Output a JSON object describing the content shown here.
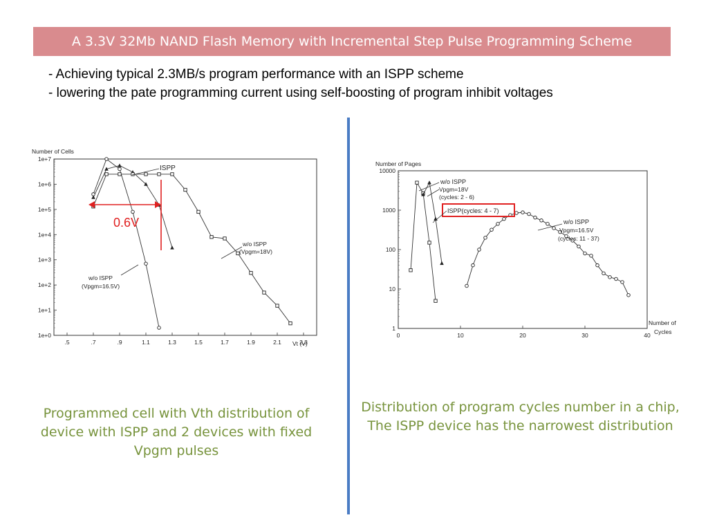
{
  "title": "A 3.3V 32Mb NAND Flash Memory with Incremental Step Pulse Programming Scheme",
  "bullets": [
    "- Achieving typical 2.3MB/s program performance with an ISPP scheme",
    "- lowering the pate programming current using self-boosting of program inhibit voltages"
  ],
  "captions": {
    "left": "Programmed cell with Vth distribution of device with ISPP and 2 devices with fixed Vpgm pulses",
    "right": "Distribution of program cycles number in a chip, The ISPP device has the narrowest distribution"
  },
  "colors": {
    "title_bg": "#d98b8e",
    "divider": "#4a7cc4",
    "caption": "#77933c",
    "highlight": "#e02020"
  },
  "chart_data": [
    {
      "type": "line",
      "ylabel": "Number of Cells",
      "xlabel": "Vt (V)",
      "yscale": "log",
      "xlim": [
        0.4,
        2.4
      ],
      "ylim": [
        1,
        10000000
      ],
      "x_ticks": [
        ".5",
        ".7",
        ".9",
        "1.1",
        "1.3",
        "1.5",
        "1.7",
        "1.9",
        "2.1",
        "2.3"
      ],
      "x_tick_values": [
        0.5,
        0.7,
        0.9,
        1.1,
        1.3,
        1.5,
        1.7,
        1.9,
        2.1,
        2.3
      ],
      "y_ticks": [
        "1e+0",
        "1e+1",
        "1e+2",
        "1e+3",
        "1e+4",
        "1e+5",
        "1e+6",
        "1e+7"
      ],
      "annotation": "0.6V",
      "series": [
        {
          "name": "ISPP",
          "marker": "triangle",
          "x": [
            0.7,
            0.8,
            0.9,
            1.0,
            1.1,
            1.2,
            1.3
          ],
          "y": [
            300000,
            4000000,
            5500000,
            3000000,
            1000000,
            150000,
            3000
          ]
        },
        {
          "name": "w/o ISPP (Vpgm=16.5V)",
          "marker": "circle",
          "x": [
            0.7,
            0.8,
            0.9,
            1.0,
            1.1,
            1.2
          ],
          "y": [
            400000,
            10000000,
            4000000,
            80000,
            700,
            2
          ]
        },
        {
          "name": "w/o ISPP (Vpgm=18V)",
          "marker": "square",
          "x": [
            0.7,
            0.8,
            0.9,
            1.0,
            1.1,
            1.2,
            1.3,
            1.4,
            1.5,
            1.6,
            1.7,
            1.8,
            1.9,
            2.0,
            2.1,
            2.2
          ],
          "y": [
            130000,
            2500000,
            2500000,
            2500000,
            2500000,
            2500000,
            2500000,
            600000,
            80000,
            8000,
            7000,
            1800,
            300,
            50,
            15,
            3
          ]
        }
      ],
      "labels": [
        "ISPP",
        "w/o ISPP",
        "(Vpgm=18V)",
        "w/o ISPP",
        "(Vpgm=16.5V)"
      ]
    },
    {
      "type": "line",
      "ylabel": "Number of Pages",
      "xlabel": "Number of Cycles",
      "yscale": "log",
      "xlim": [
        0,
        40
      ],
      "ylim": [
        1,
        10000
      ],
      "x_ticks": [
        "0",
        "10",
        "20",
        "30",
        "40"
      ],
      "x_tick_values": [
        0,
        10,
        20,
        30,
        40
      ],
      "y_ticks": [
        "1",
        "10",
        "100",
        "1000",
        "10000"
      ],
      "series": [
        {
          "name": "w/o ISPP Vpgm=18V (cycles: 2 - 6)",
          "marker": "square",
          "x": [
            2,
            3,
            4,
            5,
            6
          ],
          "y": [
            30,
            5000,
            2700,
            150,
            5
          ]
        },
        {
          "name": "ISPP (cycles: 4 - 7)",
          "marker": "triangle",
          "x": [
            4,
            5,
            6,
            7
          ],
          "y": [
            2500,
            5000,
            600,
            45
          ]
        },
        {
          "name": "w/o ISPP Vpgm=16.5V (cycles: 11 - 37)",
          "marker": "circle",
          "x": [
            11,
            12,
            13,
            14,
            15,
            16,
            17,
            18,
            19,
            20,
            21,
            22,
            23,
            24,
            25,
            26,
            27,
            28,
            29,
            30,
            31,
            32,
            33,
            34,
            35,
            36,
            37
          ],
          "y": [
            12,
            40,
            100,
            200,
            320,
            450,
            600,
            750,
            850,
            880,
            800,
            650,
            550,
            450,
            350,
            280,
            220,
            170,
            120,
            80,
            70,
            40,
            25,
            20,
            18,
            15,
            7
          ]
        }
      ],
      "labels": [
        "w/o ISPP",
        "Vpgm=18V",
        "(cycles: 2 - 6)",
        "ISPP(cycles: 4 - 7)",
        "w/o ISPP",
        "Vpgm=16.5V",
        "(cycles: 11 - 37)"
      ]
    }
  ]
}
